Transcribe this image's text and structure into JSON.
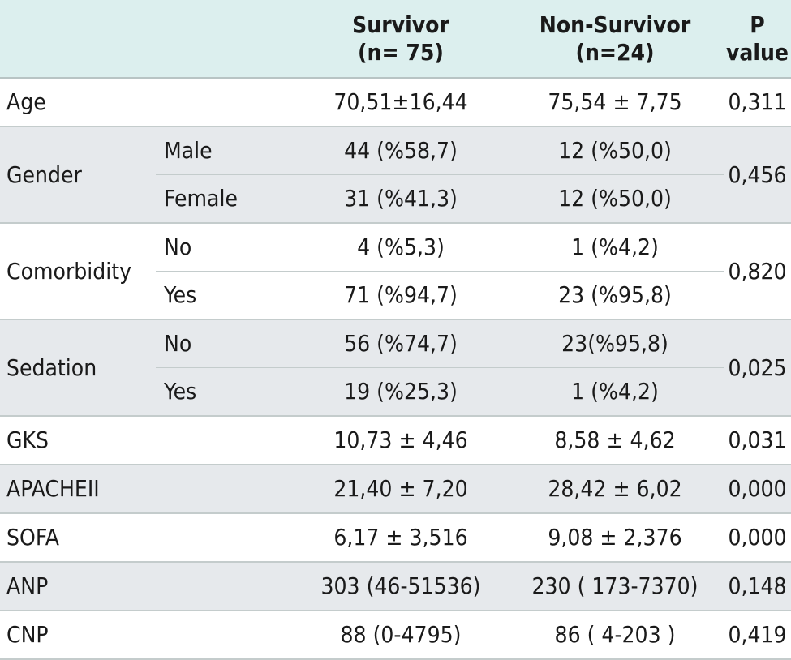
{
  "header": {
    "survivor": "Survivor\n(n= 75)",
    "non_survivor": "Non-Survivor\n(n=24)",
    "p_value": "P\nvalue"
  },
  "rows": {
    "age": {
      "label": "Age",
      "survivor": "70,51±16,44",
      "non_survivor": "75,54 ± 7,75",
      "p": "0,311"
    },
    "gender": {
      "label": "Gender",
      "p": "0,456",
      "sub": [
        {
          "label": "Male",
          "survivor": "44 (%58,7)",
          "non_survivor": "12 (%50,0)"
        },
        {
          "label": "Female",
          "survivor": "31 (%41,3)",
          "non_survivor": "12 (%50,0)"
        }
      ]
    },
    "comorbidity": {
      "label": "Comorbidity",
      "p": "0,820",
      "sub": [
        {
          "label": "No",
          "survivor": "4 (%5,3)",
          "non_survivor": "1 (%4,2)"
        },
        {
          "label": "Yes",
          "survivor": "71 (%94,7)",
          "non_survivor": "23 (%95,8)"
        }
      ]
    },
    "sedation": {
      "label": "Sedation",
      "p": "0,025",
      "sub": [
        {
          "label": "No",
          "survivor": "56 (%74,7)",
          "non_survivor": "23(%95,8)"
        },
        {
          "label": "Yes",
          "survivor": "19 (%25,3)",
          "non_survivor": "1 (%4,2)"
        }
      ]
    },
    "gks": {
      "label": "GKS",
      "survivor": "10,73 ± 4,46",
      "non_survivor": "8,58 ± 4,62",
      "p": "0,031"
    },
    "apacheii": {
      "label": "APACHEII",
      "survivor": "21,40 ± 7,20",
      "non_survivor": "28,42 ± 6,02",
      "p": "0,000"
    },
    "sofa": {
      "label": "SOFA",
      "survivor": "6,17 ± 3,516",
      "non_survivor": "9,08 ± 2,376",
      "p": "0,000"
    },
    "anp": {
      "label": "ANP",
      "survivor": "303 (46-51536)",
      "non_survivor": "230 ( 173-7370)",
      "p": "0,148"
    },
    "cnp": {
      "label": "CNP",
      "survivor": "88 (0-4795)",
      "non_survivor": "86 ( 4-203 )",
      "p": "0,419"
    }
  }
}
